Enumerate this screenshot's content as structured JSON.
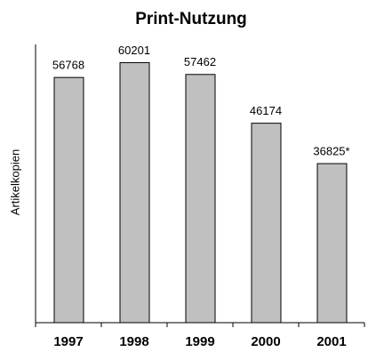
{
  "chart_data": {
    "type": "bar",
    "title": "Print-Nutzung",
    "y_label": "Artikelkopien",
    "categories": [
      "1997",
      "1998",
      "1999",
      "2000",
      "2001"
    ],
    "values": [
      56768,
      60201,
      57462,
      46174,
      36825
    ],
    "value_labels": [
      "56768",
      "60201",
      "57462",
      "46174",
      "36825*"
    ],
    "color": "#c0c0c0",
    "ylim": [
      0,
      64000
    ]
  }
}
